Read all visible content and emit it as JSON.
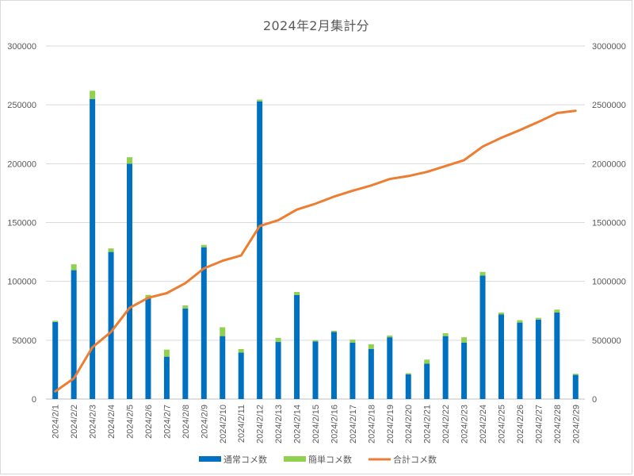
{
  "chart_data": {
    "type": "bar",
    "title": "2024年2月集計分",
    "categories": [
      "2024/2/1",
      "2024/2/2",
      "2024/2/3",
      "2024/2/4",
      "2024/2/5",
      "2024/2/6",
      "2024/2/7",
      "2024/2/8",
      "2024/2/9",
      "2024/2/10",
      "2024/2/11",
      "2024/2/12",
      "2024/2/13",
      "2024/2/14",
      "2024/2/15",
      "2024/2/16",
      "2024/2/17",
      "2024/2/18",
      "2024/2/19",
      "2024/2/20",
      "2024/2/21",
      "2024/2/22",
      "2024/2/23",
      "2024/2/24",
      "2024/2/25",
      "2024/2/26",
      "2024/2/27",
      "2024/2/28",
      "2024/2/29"
    ],
    "series": [
      {
        "name": "通常コメ数",
        "chart": "stacked-bar",
        "axis": "left",
        "color": "#0070C0",
        "values": [
          65500,
          109500,
          255000,
          125000,
          200000,
          86000,
          36000,
          77000,
          129000,
          53500,
          39500,
          253000,
          48500,
          88500,
          49000,
          57000,
          48000,
          42500,
          52500,
          21000,
          30000,
          53500,
          48000,
          105000,
          72000,
          65000,
          67500,
          73500,
          20500
        ]
      },
      {
        "name": "簡単コメ数",
        "chart": "stacked-bar",
        "axis": "left",
        "color": "#92D050",
        "values": [
          1000,
          5000,
          7000,
          3000,
          5500,
          2500,
          6000,
          2500,
          2000,
          7500,
          3000,
          1500,
          3500,
          2500,
          1000,
          1000,
          2500,
          4000,
          1500,
          1000,
          3500,
          2500,
          4500,
          3000,
          1500,
          2000,
          1500,
          2500,
          1000
        ]
      },
      {
        "name": "合計コメ数",
        "chart": "line",
        "axis": "right",
        "color": "#ED7D31",
        "values": [
          65000,
          175000,
          440000,
          570000,
          775000,
          860000,
          900000,
          985000,
          1110000,
          1175000,
          1220000,
          1470000,
          1520000,
          1610000,
          1660000,
          1720000,
          1770000,
          1815000,
          1870000,
          1895000,
          1930000,
          1980000,
          2030000,
          2145000,
          2220000,
          2285000,
          2355000,
          2430000,
          2450000
        ]
      }
    ],
    "y_left": {
      "min": 0,
      "max": 300000,
      "step": 50000,
      "ticks": [
        "0",
        "50000",
        "100000",
        "150000",
        "200000",
        "250000",
        "300000"
      ]
    },
    "y_right": {
      "min": 0,
      "max": 3000000,
      "step": 500000,
      "ticks": [
        "0",
        "500000",
        "1000000",
        "1500000",
        "2000000",
        "2500000",
        "3000000"
      ]
    },
    "xlabel": "",
    "ylabel": "",
    "grid": true,
    "legend": "bottom"
  },
  "style": {
    "grid_color": "#d9d9d9",
    "axis_color": "#bfbfbf",
    "text_color": "#595959"
  }
}
